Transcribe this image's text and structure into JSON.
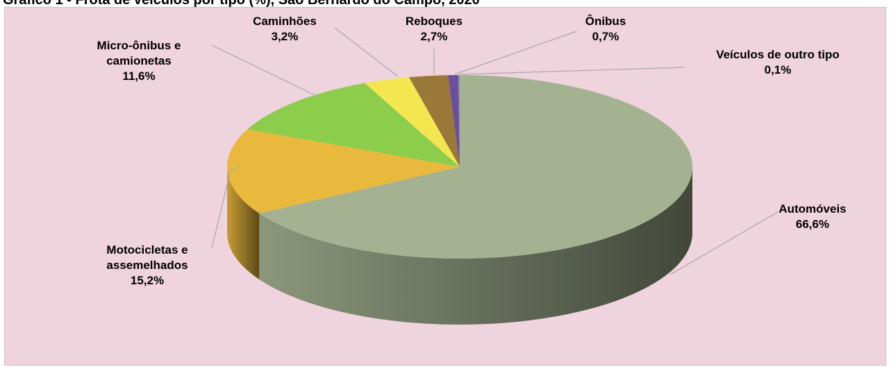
{
  "chart_data": {
    "type": "pie",
    "title": "Gráfico 1 - Frota de veículos por tipo (%), São Bernardo do Campo, 2020",
    "categories": [
      "Automóveis",
      "Motocicletas e assemelhados",
      "Micro-ônibus e camionetas",
      "Caminhões",
      "Reboques",
      "Ônibus",
      "Veículos de outro tipo"
    ],
    "values": [
      66.6,
      15.2,
      11.6,
      3.2,
      2.7,
      0.7,
      0.1
    ],
    "value_labels": [
      "66,6%",
      "15,2%",
      "11,6%",
      "3,2%",
      "2,7%",
      "0,7%",
      "0,1%"
    ],
    "colors": [
      "#a4b291",
      "#e8b93c",
      "#8ccd4c",
      "#f4e650",
      "#9a7838",
      "#6a4f9c",
      "#8a8ac8"
    ]
  }
}
